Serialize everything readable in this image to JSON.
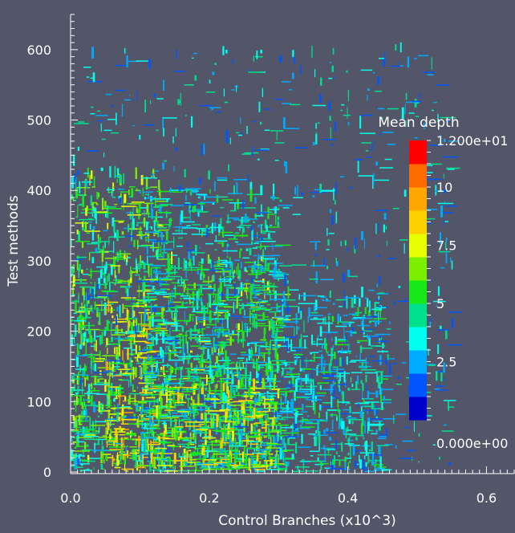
{
  "chart_data": {
    "type": "heatmap",
    "title": "",
    "xlabel": "Control Branches (x10^3)",
    "ylabel": "Test methods",
    "xlim": [
      0,
      0.64
    ],
    "ylim": [
      0,
      650
    ],
    "x_ticks": [
      "0.0",
      "0.2",
      "0.4",
      "0.6"
    ],
    "x_tick_values": [
      0,
      0.2,
      0.4,
      0.6
    ],
    "y_ticks": [
      "0",
      "100",
      "200",
      "300",
      "400",
      "500",
      "600"
    ],
    "y_tick_values": [
      0,
      100,
      200,
      300,
      400,
      500,
      600
    ],
    "colorbar": {
      "title": "Mean depth",
      "min": 0,
      "max": 12,
      "tick_labels": [
        "1.200e+01",
        "10",
        "7.5",
        "5",
        "2.5",
        "0.000e+00"
      ],
      "tick_values": [
        12,
        10,
        7.5,
        5,
        2.5,
        0
      ],
      "colors": [
        "#0000cc",
        "#0055ff",
        "#00aaff",
        "#00ffee",
        "#00e08a",
        "#18e818",
        "#7cef00",
        "#e7ff00",
        "#ffd000",
        "#ffa600",
        "#ff6b00",
        "#ff0000"
      ]
    },
    "density_regions": [
      {
        "x0": 0.0,
        "x1": 0.13,
        "y0": 0,
        "y1": 420,
        "mean": 5.5
      },
      {
        "x0": 0.05,
        "x1": 0.12,
        "y0": 0,
        "y1": 230,
        "mean": 7.5
      },
      {
        "x0": 0.0,
        "x1": 0.02,
        "y0": 0,
        "y1": 230,
        "mean": 4.5
      },
      {
        "x0": 0.13,
        "x1": 0.3,
        "y0": 0,
        "y1": 300,
        "mean": 5.5
      },
      {
        "x0": 0.1,
        "x1": 0.3,
        "y0": 0,
        "y1": 400,
        "mean": 4.0
      },
      {
        "x0": 0.0,
        "x1": 0.55,
        "y0": 0,
        "y1": 600,
        "mean": 3.0
      },
      {
        "x0": 0.3,
        "x1": 0.45,
        "y0": 0,
        "y1": 250,
        "mean": 3.5
      },
      {
        "x0": 0.12,
        "x1": 0.3,
        "y0": 0,
        "y1": 120,
        "mean": 7.0
      }
    ]
  }
}
